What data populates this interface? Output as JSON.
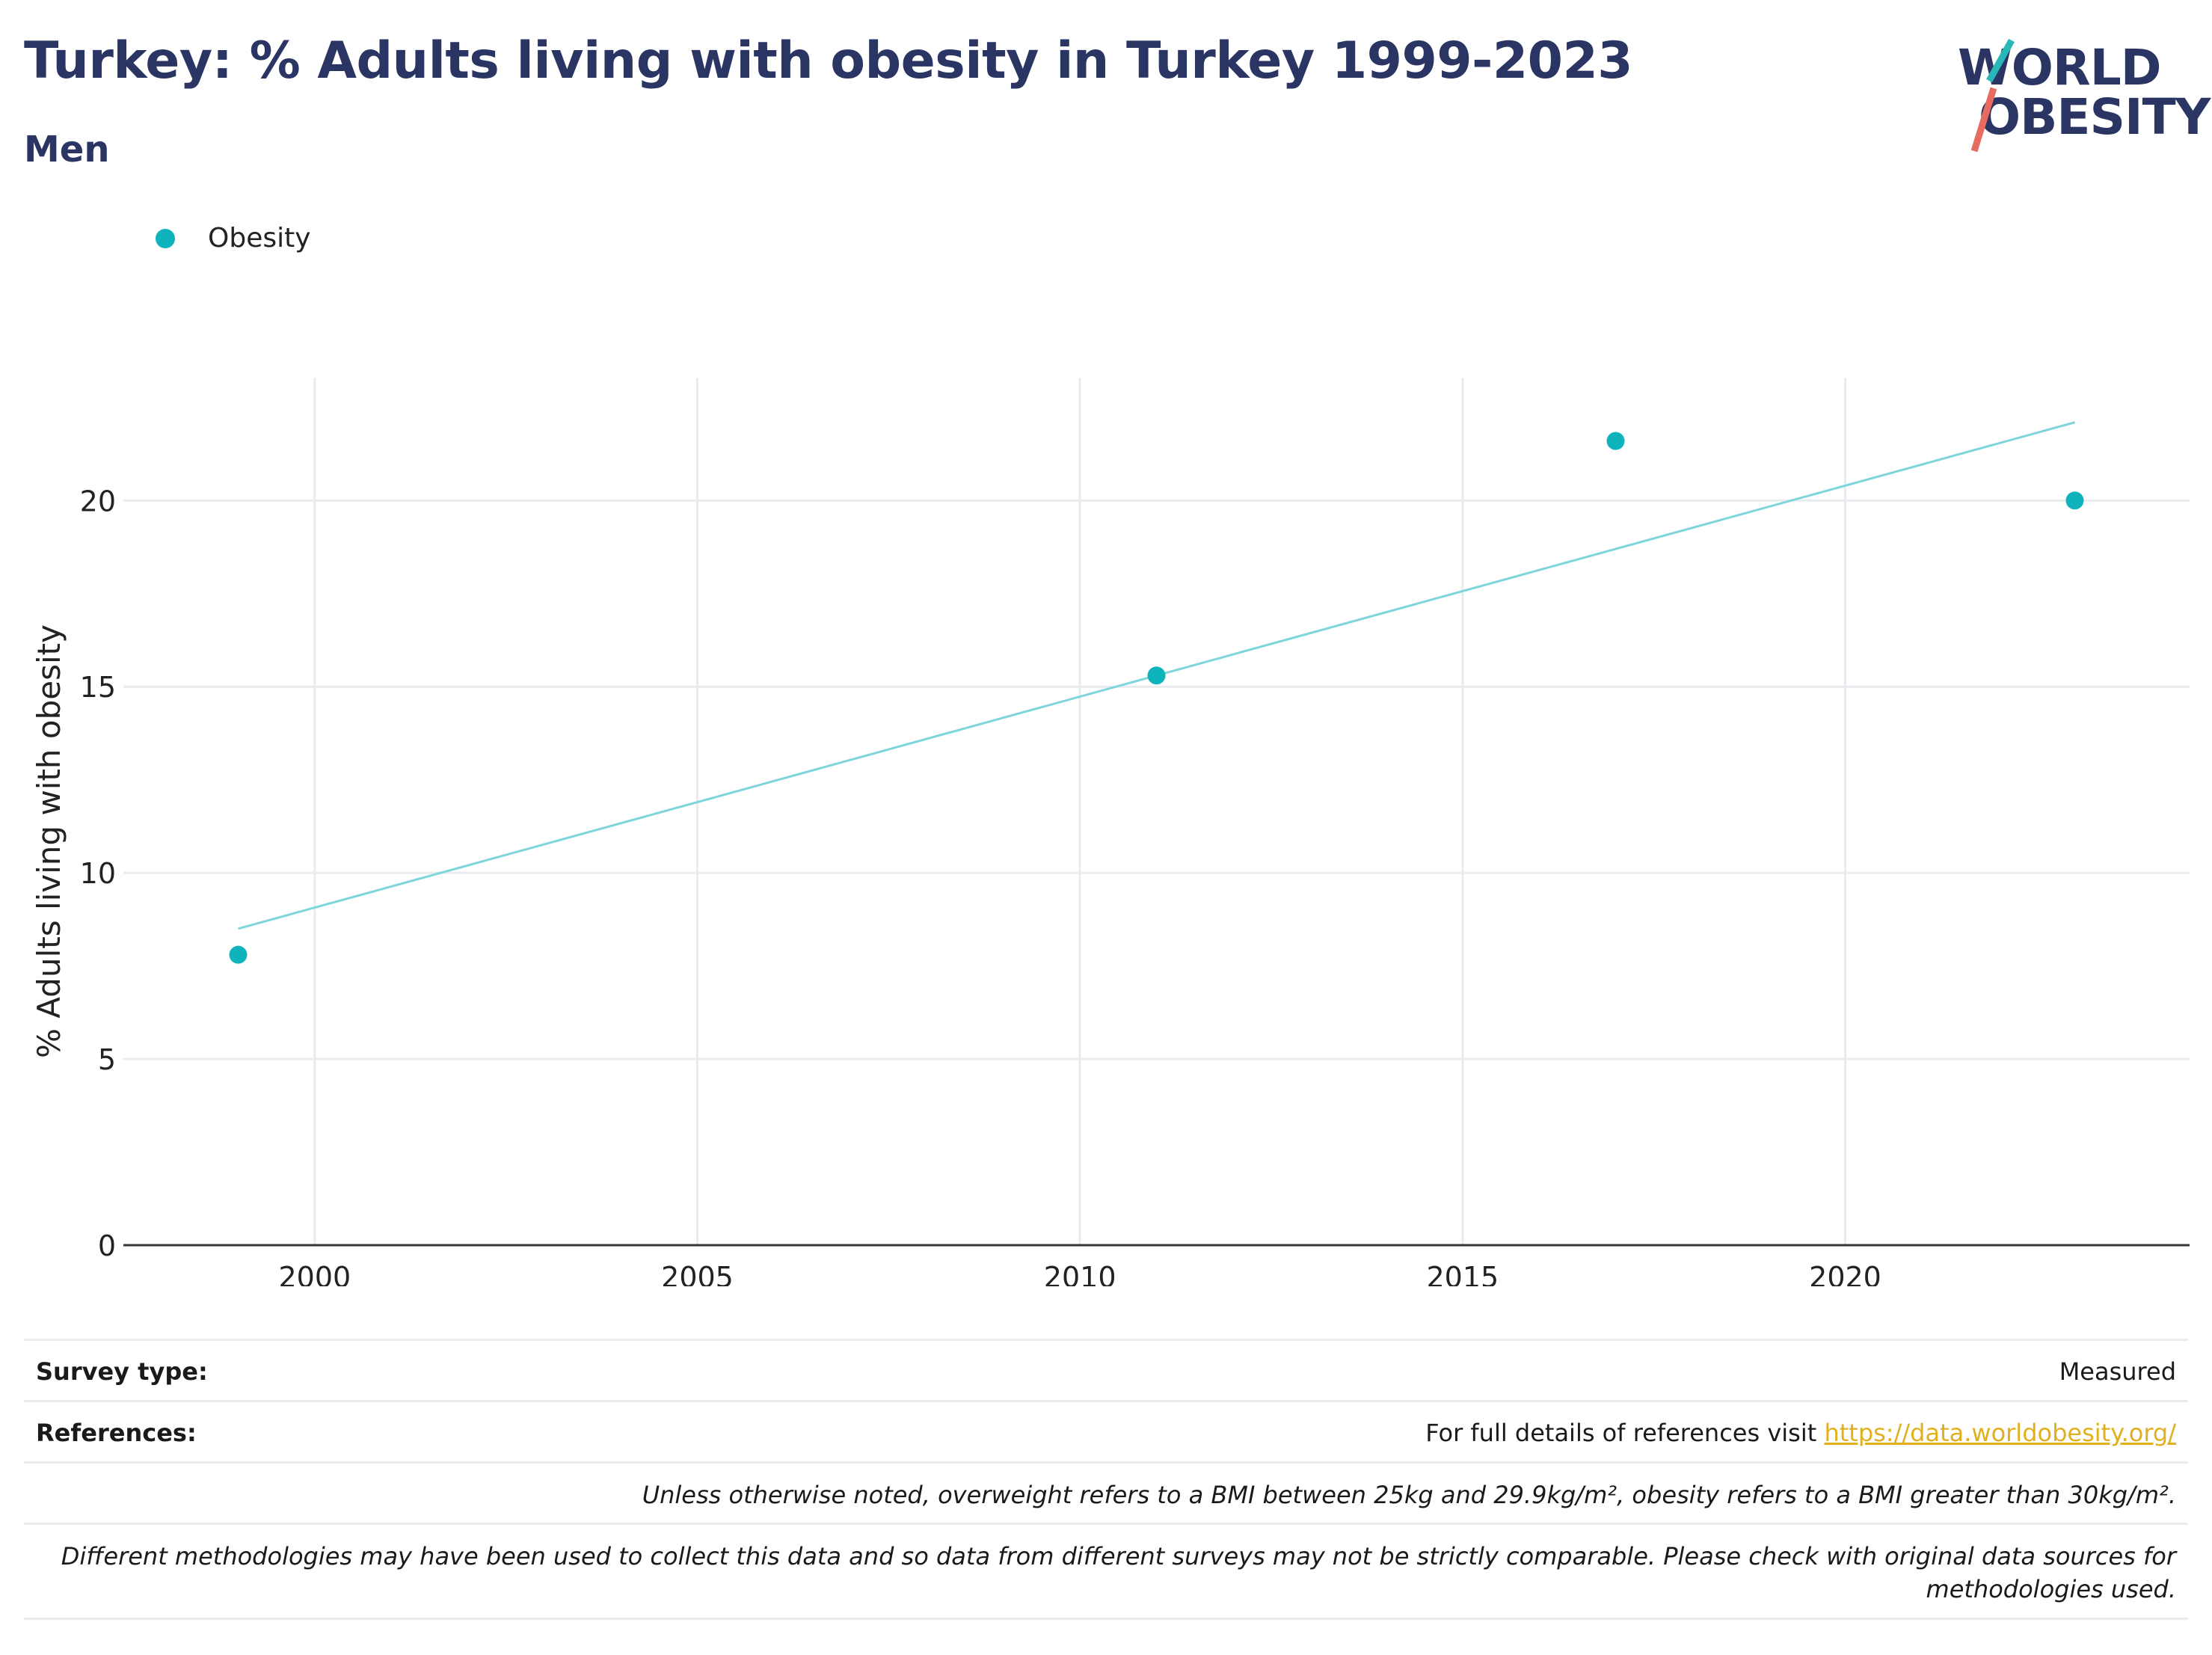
{
  "title": "Turkey: % Adults living with obesity in Turkey 1999-2023",
  "subtitle": "Men",
  "logo": {
    "line1": "WORLD",
    "line2": "OBESITY",
    "colors": {
      "navy": "#2a3563",
      "teal": "#2ab7b8",
      "coral": "#e86b5f"
    }
  },
  "legend": {
    "label": "Obesity",
    "color": "#0fb3bb"
  },
  "chart_data": {
    "type": "scatter",
    "title": "Turkey: % Adults living with obesity in Turkey 1999-2023",
    "subtitle": "Men",
    "xlabel": "",
    "ylabel": "% Adults living with obesity",
    "xlim": [
      1997.5,
      2024.5
    ],
    "ylim": [
      0,
      23.3
    ],
    "x_ticks": [
      2000,
      2005,
      2010,
      2015,
      2020
    ],
    "y_ticks": [
      0,
      5,
      10,
      15,
      20
    ],
    "grid": true,
    "legend_position": "top-left",
    "series": [
      {
        "name": "Obesity",
        "color": "#0fb3bb",
        "x": [
          1999,
          2011,
          2017,
          2023
        ],
        "y": [
          7.8,
          15.3,
          21.6,
          20.0
        ]
      }
    ],
    "trendline": {
      "color": "#7fd5dc",
      "x": [
        1999,
        2023
      ],
      "y": [
        8.5,
        22.1
      ]
    }
  },
  "footer": {
    "survey_type_label": "Survey type:",
    "survey_type_value": "Measured",
    "references_label": "References:",
    "references_text": "For full details of references visit ",
    "references_link": "https://data.worldobesity.org/",
    "note_bmi": "Unless otherwise noted, overweight refers to a BMI between 25kg and 29.9kg/m², obesity refers to a BMI greater than 30kg/m².",
    "note_methods_line1": "Different methodologies may have been used to collect this data and so data from different surveys may not be strictly comparable. Please check with original data sources for",
    "note_methods_line2": "methodologies used."
  }
}
